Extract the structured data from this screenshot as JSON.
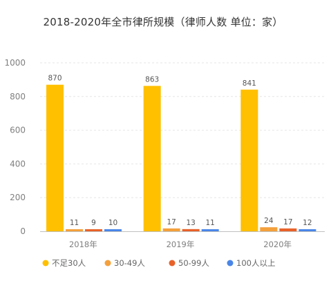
{
  "chart_data": {
    "type": "bar",
    "title": "2018-2020年全市律所规模（律师人数  单位：家）",
    "categories": [
      "2018年",
      "2019年",
      "2020年"
    ],
    "series": [
      {
        "name": "不足30人",
        "values": [
          870,
          863,
          841
        ],
        "color": "#FFC000"
      },
      {
        "name": "30-49人",
        "values": [
          11,
          17,
          24
        ],
        "color": "#F4A03C"
      },
      {
        "name": "50-99人",
        "values": [
          9,
          13,
          17
        ],
        "color": "#E8622A"
      },
      {
        "name": "100人以上",
        "values": [
          10,
          11,
          12
        ],
        "color": "#4A86E8"
      }
    ],
    "ylim": [
      0,
      1000
    ],
    "yticks": [
      0,
      200,
      400,
      600,
      800,
      1000
    ],
    "xlabel": "",
    "ylabel": "",
    "grid": true,
    "legend_position": "bottom"
  }
}
